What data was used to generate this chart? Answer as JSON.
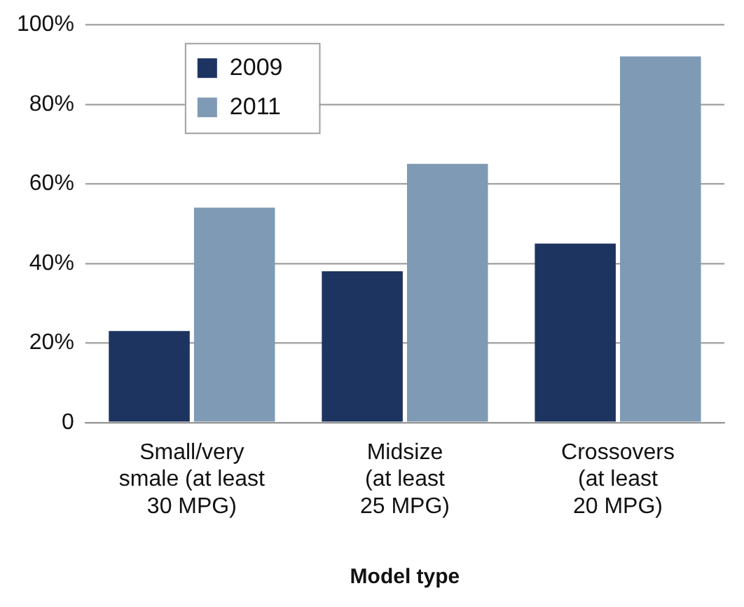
{
  "chart_data": {
    "type": "bar",
    "xlabel": "Model type",
    "categories": [
      "Small/very\nsmale (at least\n30 MPG)",
      "Midsize\n(at least\n25 MPG)",
      "Crossovers\n(at least\n20 MPG)"
    ],
    "series": [
      {
        "name": "2009",
        "color": "#1d3461",
        "values": [
          23,
          38,
          45
        ]
      },
      {
        "name": "2011",
        "color": "#7f9ab4",
        "values": [
          54,
          65,
          92
        ]
      }
    ],
    "ylim": [
      0,
      100
    ],
    "yticks": [
      0,
      {
        "value": 20,
        "label": "20%"
      },
      {
        "value": 40,
        "label": "40%"
      },
      {
        "value": 60,
        "label": "60%"
      },
      {
        "value": 80,
        "label": "80%"
      },
      {
        "value": 100,
        "label": "100%"
      }
    ],
    "grid": "y",
    "legend": "top left"
  }
}
